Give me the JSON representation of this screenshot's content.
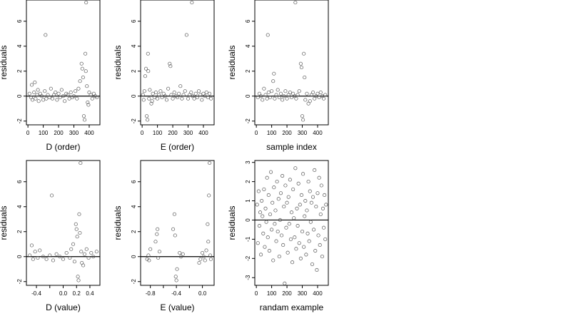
{
  "chart_data": [
    {
      "type": "scatter",
      "xlabel": "D (order)",
      "ylabel": "residuals",
      "xlim": [
        -10,
        470
      ],
      "ylim": [
        -2.3,
        7.7
      ],
      "xticks": [
        0,
        100,
        200,
        300,
        400
      ],
      "yticks": [
        -2,
        0,
        2,
        4,
        6
      ],
      "hline": 0,
      "points": [
        [
          10,
          0.2
        ],
        [
          20,
          -0.1
        ],
        [
          25,
          0.9
        ],
        [
          30,
          -0.3
        ],
        [
          40,
          0.3
        ],
        [
          45,
          1.1
        ],
        [
          50,
          -0.2
        ],
        [
          60,
          0.1
        ],
        [
          65,
          0.5
        ],
        [
          70,
          -0.4
        ],
        [
          80,
          0.2
        ],
        [
          90,
          0.0
        ],
        [
          100,
          -0.3
        ],
        [
          110,
          0.4
        ],
        [
          115,
          4.9
        ],
        [
          120,
          -0.2
        ],
        [
          130,
          0.1
        ],
        [
          140,
          -0.1
        ],
        [
          150,
          0.6
        ],
        [
          160,
          -0.2
        ],
        [
          170,
          0.1
        ],
        [
          180,
          0.3
        ],
        [
          190,
          -0.3
        ],
        [
          200,
          0.2
        ],
        [
          210,
          -0.1
        ],
        [
          220,
          0.5
        ],
        [
          230,
          0.0
        ],
        [
          240,
          -0.4
        ],
        [
          250,
          0.2
        ],
        [
          260,
          0.1
        ],
        [
          270,
          -0.2
        ],
        [
          280,
          0.3
        ],
        [
          290,
          -0.1
        ],
        [
          300,
          0.0
        ],
        [
          310,
          0.4
        ],
        [
          320,
          -0.2
        ],
        [
          330,
          0.6
        ],
        [
          340,
          1.2
        ],
        [
          350,
          2.6
        ],
        [
          355,
          2.2
        ],
        [
          360,
          1.5
        ],
        [
          365,
          -1.6
        ],
        [
          370,
          -1.9
        ],
        [
          375,
          3.4
        ],
        [
          378,
          2.0
        ],
        [
          380,
          7.5
        ],
        [
          385,
          0.8
        ],
        [
          390,
          -0.5
        ],
        [
          395,
          -0.7
        ],
        [
          400,
          0.3
        ],
        [
          410,
          0.1
        ],
        [
          420,
          -0.2
        ],
        [
          430,
          0.2
        ],
        [
          440,
          0.0
        ],
        [
          450,
          -0.1
        ]
      ]
    },
    {
      "type": "scatter",
      "xlabel": "E (order)",
      "ylabel": "residuals",
      "xlim": [
        -10,
        470
      ],
      "ylim": [
        -2.3,
        7.7
      ],
      "xticks": [
        0,
        100,
        200,
        300,
        400
      ],
      "yticks": [
        -2,
        0,
        2,
        4,
        6
      ],
      "hline": 0,
      "points": [
        [
          5,
          0.1
        ],
        [
          10,
          -0.3
        ],
        [
          15,
          0.4
        ],
        [
          20,
          1.6
        ],
        [
          25,
          2.2
        ],
        [
          30,
          -1.6
        ],
        [
          35,
          -1.9
        ],
        [
          38,
          3.4
        ],
        [
          40,
          2.0
        ],
        [
          45,
          -0.2
        ],
        [
          50,
          0.5
        ],
        [
          60,
          -0.6
        ],
        [
          65,
          -0.4
        ],
        [
          70,
          0.2
        ],
        [
          80,
          -0.1
        ],
        [
          90,
          0.3
        ],
        [
          100,
          -0.2
        ],
        [
          110,
          0.1
        ],
        [
          120,
          0.4
        ],
        [
          130,
          -0.1
        ],
        [
          140,
          0.2
        ],
        [
          150,
          0.0
        ],
        [
          160,
          -0.3
        ],
        [
          170,
          0.6
        ],
        [
          180,
          2.6
        ],
        [
          185,
          2.4
        ],
        [
          190,
          0.1
        ],
        [
          200,
          -0.2
        ],
        [
          210,
          0.3
        ],
        [
          220,
          0.0
        ],
        [
          230,
          -0.1
        ],
        [
          240,
          0.2
        ],
        [
          250,
          0.8
        ],
        [
          260,
          -0.2
        ],
        [
          270,
          0.1
        ],
        [
          280,
          0.4
        ],
        [
          290,
          4.9
        ],
        [
          300,
          -0.2
        ],
        [
          310,
          0.1
        ],
        [
          320,
          0.3
        ],
        [
          325,
          7.5
        ],
        [
          330,
          0.0
        ],
        [
          340,
          -0.2
        ],
        [
          350,
          0.2
        ],
        [
          360,
          -0.1
        ],
        [
          370,
          0.4
        ],
        [
          380,
          0.1
        ],
        [
          390,
          -0.3
        ],
        [
          400,
          0.2
        ],
        [
          410,
          0.0
        ],
        [
          420,
          0.3
        ],
        [
          430,
          -0.1
        ],
        [
          440,
          0.2
        ],
        [
          450,
          -0.2
        ]
      ]
    },
    {
      "type": "scatter",
      "xlabel": "sample index",
      "ylabel": "residuals",
      "xlim": [
        -10,
        470
      ],
      "ylim": [
        -2.3,
        7.7
      ],
      "xticks": [
        0,
        100,
        200,
        300,
        400
      ],
      "yticks": [
        -2,
        0,
        2,
        4,
        6
      ],
      "hline": 0,
      "points": [
        [
          10,
          -0.1
        ],
        [
          20,
          0.2
        ],
        [
          30,
          0.0
        ],
        [
          40,
          -0.3
        ],
        [
          50,
          0.6
        ],
        [
          60,
          0.1
        ],
        [
          70,
          -0.2
        ],
        [
          75,
          4.9
        ],
        [
          80,
          0.3
        ],
        [
          90,
          -0.1
        ],
        [
          100,
          0.4
        ],
        [
          110,
          1.2
        ],
        [
          115,
          1.8
        ],
        [
          120,
          -0.2
        ],
        [
          130,
          0.1
        ],
        [
          140,
          0.5
        ],
        [
          150,
          -0.1
        ],
        [
          160,
          0.2
        ],
        [
          170,
          -0.3
        ],
        [
          180,
          0.0
        ],
        [
          190,
          0.4
        ],
        [
          200,
          -0.2
        ],
        [
          210,
          0.1
        ],
        [
          220,
          0.3
        ],
        [
          230,
          -0.1
        ],
        [
          240,
          0.2
        ],
        [
          250,
          0.0
        ],
        [
          255,
          7.5
        ],
        [
          260,
          -0.2
        ],
        [
          270,
          0.1
        ],
        [
          280,
          0.4
        ],
        [
          290,
          2.6
        ],
        [
          295,
          2.3
        ],
        [
          300,
          -1.6
        ],
        [
          305,
          -1.9
        ],
        [
          310,
          3.4
        ],
        [
          315,
          1.5
        ],
        [
          320,
          -0.3
        ],
        [
          330,
          0.2
        ],
        [
          340,
          -0.6
        ],
        [
          350,
          -0.4
        ],
        [
          360,
          0.1
        ],
        [
          370,
          0.3
        ],
        [
          380,
          -0.2
        ],
        [
          390,
          0.0
        ],
        [
          400,
          0.2
        ],
        [
          410,
          -0.1
        ],
        [
          420,
          0.3
        ],
        [
          430,
          0.0
        ],
        [
          440,
          -0.2
        ],
        [
          450,
          0.1
        ]
      ]
    },
    {
      "type": "scatter",
      "xlabel": "D (value)",
      "ylabel": "residuals",
      "xlim": [
        -0.55,
        0.55
      ],
      "ylim": [
        -2.3,
        7.7
      ],
      "xticks": [
        -0.4,
        -0.2,
        0.0,
        0.2,
        0.4
      ],
      "xticklabels": [
        "-0.4",
        "",
        "0.0",
        "0.2",
        "0.4"
      ],
      "yticks": [
        -2,
        0,
        2,
        4,
        6
      ],
      "hline": 0,
      "points": [
        [
          -0.5,
          0.1
        ],
        [
          -0.47,
          0.9
        ],
        [
          -0.45,
          -0.2
        ],
        [
          -0.42,
          0.4
        ],
        [
          -0.38,
          -0.1
        ],
        [
          -0.35,
          0.5
        ],
        [
          -0.3,
          0.0
        ],
        [
          -0.25,
          -0.2
        ],
        [
          -0.2,
          0.1
        ],
        [
          -0.17,
          4.9
        ],
        [
          -0.15,
          -0.3
        ],
        [
          -0.1,
          0.2
        ],
        [
          -0.05,
          0.0
        ],
        [
          0.0,
          -0.2
        ],
        [
          0.05,
          0.3
        ],
        [
          0.1,
          -0.1
        ],
        [
          0.12,
          0.6
        ],
        [
          0.15,
          1.0
        ],
        [
          0.17,
          -0.4
        ],
        [
          0.19,
          2.6
        ],
        [
          0.2,
          2.2
        ],
        [
          0.21,
          1.6
        ],
        [
          0.22,
          -1.6
        ],
        [
          0.23,
          -1.9
        ],
        [
          0.24,
          3.4
        ],
        [
          0.25,
          1.9
        ],
        [
          0.26,
          7.5
        ],
        [
          0.27,
          0.4
        ],
        [
          0.28,
          -0.5
        ],
        [
          0.3,
          -0.7
        ],
        [
          0.32,
          0.2
        ],
        [
          0.35,
          0.6
        ],
        [
          0.38,
          -0.1
        ],
        [
          0.42,
          0.3
        ],
        [
          0.45,
          0.0
        ],
        [
          0.5,
          0.4
        ]
      ]
    },
    {
      "type": "scatter",
      "xlabel": "E (value)",
      "ylabel": "residuals",
      "xlim": [
        -0.95,
        0.18
      ],
      "ylim": [
        -2.3,
        7.7
      ],
      "xticks": [
        -0.8,
        -0.6,
        -0.4,
        -0.2,
        0.0
      ],
      "xticklabels": [
        "-0.8",
        "",
        "-0.4",
        "",
        "0.0"
      ],
      "yticks": [
        -2,
        0,
        2,
        4,
        6
      ],
      "hline": 0,
      "points": [
        [
          -0.85,
          -0.2
        ],
        [
          -0.83,
          0.1
        ],
        [
          -0.82,
          -0.3
        ],
        [
          -0.8,
          0.6
        ],
        [
          -0.72,
          1.2
        ],
        [
          -0.7,
          1.8
        ],
        [
          -0.69,
          2.2
        ],
        [
          -0.68,
          -0.1
        ],
        [
          -0.66,
          0.4
        ],
        [
          -0.45,
          2.2
        ],
        [
          -0.43,
          3.4
        ],
        [
          -0.42,
          1.7
        ],
        [
          -0.41,
          -1.6
        ],
        [
          -0.4,
          -1.9
        ],
        [
          -0.39,
          -1.0
        ],
        [
          -0.35,
          0.3
        ],
        [
          -0.33,
          0.0
        ],
        [
          -0.3,
          0.2
        ],
        [
          -0.05,
          -0.5
        ],
        [
          -0.03,
          -0.2
        ],
        [
          0.0,
          0.3
        ],
        [
          0.02,
          0.0
        ],
        [
          0.04,
          -0.3
        ],
        [
          0.06,
          0.5
        ],
        [
          0.08,
          2.6
        ],
        [
          0.09,
          1.2
        ],
        [
          0.1,
          4.9
        ],
        [
          0.11,
          7.5
        ],
        [
          0.12,
          0.1
        ],
        [
          0.13,
          -0.2
        ]
      ]
    },
    {
      "type": "scatter",
      "xlabel": "randam example",
      "ylabel": "residuals",
      "xlim": [
        -10,
        470
      ],
      "ylim": [
        -3.4,
        3.1
      ],
      "xticks": [
        0,
        100,
        200,
        300,
        400
      ],
      "yticks": [
        -3,
        -2,
        -1,
        0,
        1,
        2,
        3
      ],
      "hline": 0,
      "points": [
        [
          5,
          0.8
        ],
        [
          10,
          -1.2
        ],
        [
          15,
          1.5
        ],
        [
          20,
          -0.3
        ],
        [
          25,
          0.4
        ],
        [
          30,
          -1.8
        ],
        [
          35,
          1.0
        ],
        [
          40,
          0.2
        ],
        [
          45,
          -0.7
        ],
        [
          50,
          1.6
        ],
        [
          55,
          -1.4
        ],
        [
          60,
          0.6
        ],
        [
          65,
          -0.1
        ],
        [
          70,
          2.2
        ],
        [
          75,
          -0.9
        ],
        [
          80,
          1.3
        ],
        [
          85,
          -1.6
        ],
        [
          90,
          0.3
        ],
        [
          95,
          2.5
        ],
        [
          100,
          -0.5
        ],
        [
          105,
          0.9
        ],
        [
          110,
          -2.1
        ],
        [
          115,
          1.7
        ],
        [
          120,
          -0.2
        ],
        [
          125,
          0.5
        ],
        [
          130,
          -1.1
        ],
        [
          135,
          2.0
        ],
        [
          140,
          -0.6
        ],
        [
          145,
          1.1
        ],
        [
          150,
          -1.9
        ],
        [
          155,
          0.0
        ],
        [
          160,
          1.4
        ],
        [
          165,
          -0.8
        ],
        [
          170,
          2.3
        ],
        [
          175,
          -1.3
        ],
        [
          180,
          0.7
        ],
        [
          185,
          -3.3
        ],
        [
          190,
          1.8
        ],
        [
          195,
          -0.4
        ],
        [
          200,
          0.9
        ],
        [
          205,
          -1.7
        ],
        [
          210,
          1.2
        ],
        [
          215,
          -0.2
        ],
        [
          220,
          2.1
        ],
        [
          225,
          -1.0
        ],
        [
          230,
          0.4
        ],
        [
          235,
          -2.2
        ],
        [
          240,
          1.6
        ],
        [
          245,
          0.1
        ],
        [
          250,
          -0.9
        ],
        [
          255,
          2.7
        ],
        [
          260,
          -1.5
        ],
        [
          265,
          0.6
        ],
        [
          270,
          -0.3
        ],
        [
          275,
          1.9
        ],
        [
          280,
          -1.2
        ],
        [
          285,
          0.8
        ],
        [
          290,
          -2.0
        ],
        [
          295,
          1.3
        ],
        [
          300,
          -0.6
        ],
        [
          305,
          2.4
        ],
        [
          310,
          -1.4
        ],
        [
          315,
          0.2
        ],
        [
          320,
          1.0
        ],
        [
          325,
          -1.8
        ],
        [
          330,
          0.5
        ],
        [
          335,
          -0.7
        ],
        [
          340,
          2.0
        ],
        [
          345,
          -1.1
        ],
        [
          350,
          1.5
        ],
        [
          355,
          -0.1
        ],
        [
          360,
          0.9
        ],
        [
          365,
          -2.3
        ],
        [
          370,
          1.2
        ],
        [
          375,
          -0.5
        ],
        [
          380,
          2.6
        ],
        [
          385,
          -1.6
        ],
        [
          390,
          0.7
        ],
        [
          395,
          -2.6
        ],
        [
          400,
          1.4
        ],
        [
          405,
          -0.8
        ],
        [
          410,
          2.2
        ],
        [
          415,
          -1.3
        ],
        [
          420,
          0.3
        ],
        [
          425,
          1.8
        ],
        [
          430,
          -1.9
        ],
        [
          435,
          0.6
        ],
        [
          440,
          -0.4
        ],
        [
          445,
          1.3
        ],
        [
          450,
          -1.0
        ],
        [
          455,
          0.8
        ]
      ]
    }
  ]
}
